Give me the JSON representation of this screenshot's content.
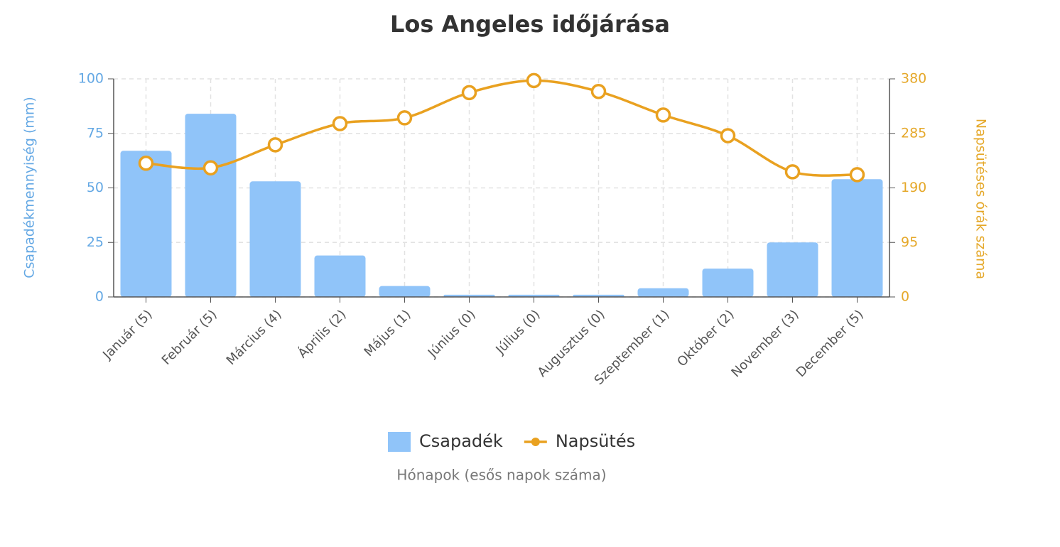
{
  "chart_data": {
    "type": "bar",
    "title": "Los Angeles időjárása",
    "xlabel": "Hónapok (esős napok száma)",
    "ylabel": "Csapadékmennyiség (mm)",
    "y2label": "Napsütéses órák száma",
    "categories": [
      "Január (5)",
      "Február (5)",
      "Március (4)",
      "Április (2)",
      "Május (1)",
      "Június (0)",
      "Július (0)",
      "Augusztus (0)",
      "Szeptember (1)",
      "Október (2)",
      "November (3)",
      "December (5)"
    ],
    "series": [
      {
        "name": "Csapadék",
        "type": "bar",
        "color": "#90c4f9",
        "values": [
          67,
          84,
          53,
          19,
          5,
          1,
          1,
          1,
          4,
          13,
          25,
          54
        ]
      },
      {
        "name": "Napsütés",
        "type": "line",
        "axis": "y2",
        "color": "#e9a120",
        "values": [
          233,
          225,
          265,
          302,
          312,
          356,
          377,
          358,
          317,
          281,
          218,
          213
        ]
      }
    ],
    "ylim": [
      0,
      100
    ],
    "yticks": [
      0,
      25,
      50,
      75,
      100
    ],
    "y2lim": [
      0,
      380
    ],
    "y2ticks": [
      0,
      95,
      190,
      285,
      380
    ],
    "grid": true,
    "legend": "bottom"
  }
}
